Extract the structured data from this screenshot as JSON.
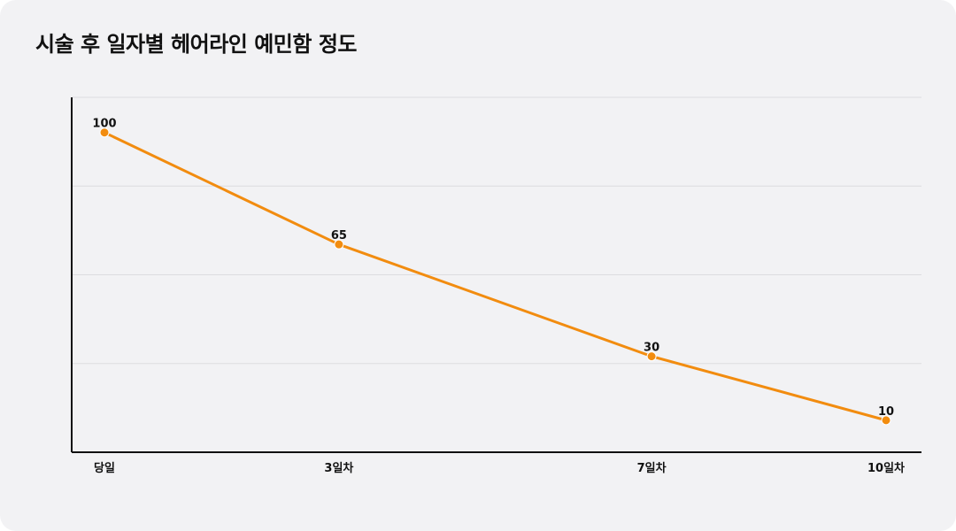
{
  "chart_data": {
    "type": "line",
    "title": "시술 후 일자별 헤어라인 예민함 정도",
    "categories": [
      "당일",
      "3일차",
      "7일차",
      "10일차"
    ],
    "x": [
      0,
      3,
      7,
      10
    ],
    "series": [
      {
        "values": [
          100,
          65,
          30,
          10
        ]
      }
    ],
    "ylim": [
      0,
      111
    ],
    "grid": true,
    "data_labels": [
      "100",
      "65",
      "30",
      "10"
    ],
    "colors": {
      "line": "#f28c0f",
      "grid": "#dcdcdf",
      "axis": "#111111"
    }
  }
}
